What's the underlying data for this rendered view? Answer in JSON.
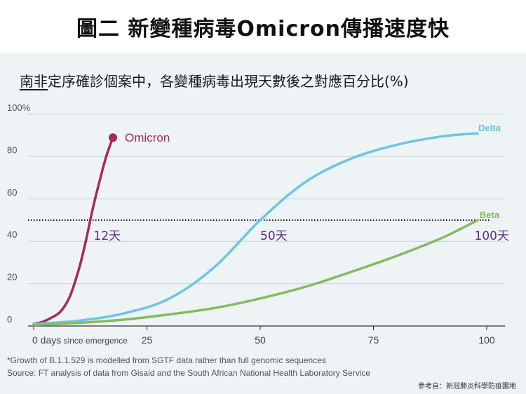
{
  "page_title": "圖二 新變種病毒Omicron傳播速度快",
  "chart_data": {
    "type": "line",
    "title_underlined": "南非",
    "title_rest": "定序確診個案中，各變種病毒出現天數後之對應百分比(%)",
    "xlabel": "",
    "ylabel": "",
    "xlim": [
      0,
      100
    ],
    "ylim": [
      0,
      100
    ],
    "x_ticks": [
      {
        "value": 0,
        "label": "0 days",
        "suffix": " since emergence"
      },
      {
        "value": 25,
        "label": "25"
      },
      {
        "value": 50,
        "label": "50"
      },
      {
        "value": 75,
        "label": "75"
      },
      {
        "value": 100,
        "label": "100"
      }
    ],
    "y_ticks": [
      {
        "value": 0,
        "label": "0"
      },
      {
        "value": 20,
        "label": "20"
      },
      {
        "value": 40,
        "label": "40"
      },
      {
        "value": 60,
        "label": "60"
      },
      {
        "value": 80,
        "label": "80"
      },
      {
        "value": 100,
        "label": "100%"
      }
    ],
    "grid": true,
    "reference_line": {
      "y": 50,
      "style": "dotted"
    },
    "series": [
      {
        "name": "Omicron",
        "color": "#a8285a",
        "end_marker": true,
        "points": [
          [
            0,
            1
          ],
          [
            2,
            2
          ],
          [
            4,
            4
          ],
          [
            6,
            7
          ],
          [
            8,
            14
          ],
          [
            10,
            27
          ],
          [
            11.5,
            40
          ],
          [
            13,
            55
          ],
          [
            14.5,
            68
          ],
          [
            16,
            80
          ],
          [
            17.5,
            89
          ]
        ]
      },
      {
        "name": "Delta",
        "color": "#6ec5e6",
        "points": [
          [
            0,
            1
          ],
          [
            10,
            2.5
          ],
          [
            20,
            6
          ],
          [
            30,
            13
          ],
          [
            40,
            28
          ],
          [
            50,
            50
          ],
          [
            60,
            68
          ],
          [
            70,
            79
          ],
          [
            80,
            85.5
          ],
          [
            90,
            89.5
          ],
          [
            98,
            91
          ]
        ]
      },
      {
        "name": "Beta",
        "color": "#86bb5e",
        "points": [
          [
            0,
            0.5
          ],
          [
            10,
            1.5
          ],
          [
            20,
            3
          ],
          [
            30,
            5.5
          ],
          [
            40,
            8.5
          ],
          [
            50,
            13
          ],
          [
            60,
            18.5
          ],
          [
            70,
            25.5
          ],
          [
            80,
            33
          ],
          [
            90,
            41.5
          ],
          [
            98,
            50
          ]
        ]
      }
    ],
    "annotations": [
      {
        "text": "12天",
        "x": 12,
        "y": 42
      },
      {
        "text": "50天",
        "x": 50,
        "y": 42
      },
      {
        "text": "100天",
        "x": 100,
        "y": 42
      }
    ],
    "annotation_color": "#5e2d83",
    "footnotes": [
      "*Growth of B.1.1.529 is modelled from SGTF data rather than full genomic sequences",
      "Source: FT analysis of data from Gisaid and the South African National Health Laboratory Service"
    ],
    "reference_note": "參考自：新冠肺炎科學防疫園地"
  }
}
